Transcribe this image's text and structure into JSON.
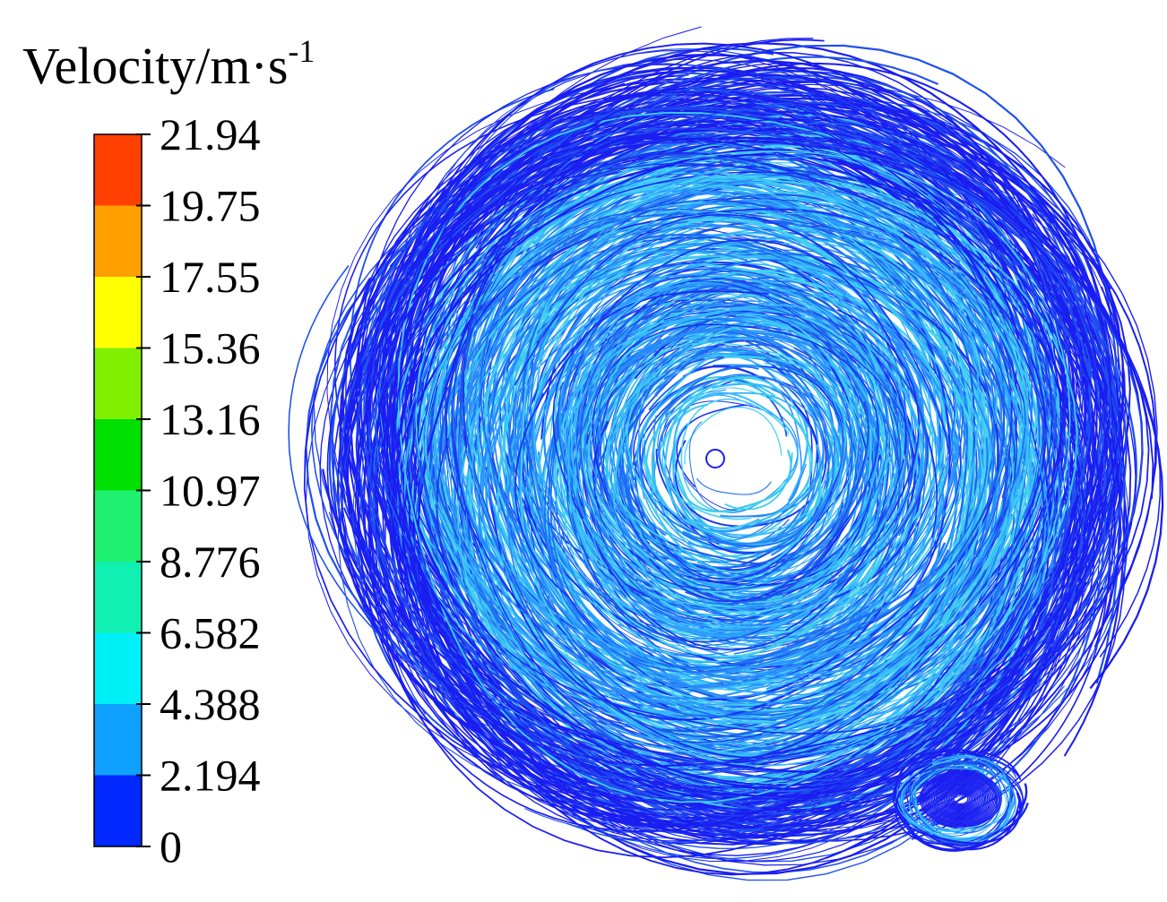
{
  "legend": {
    "title": {
      "text": "Velocity/m·s",
      "superscript": "-1"
    },
    "ticks": [
      21.94,
      19.75,
      17.55,
      15.36,
      13.16,
      10.97,
      8.776,
      6.582,
      4.388,
      2.194,
      0
    ],
    "colors": [
      "#ff4000",
      "#ffa000",
      "#ffff00",
      "#80f000",
      "#00e000",
      "#20f070",
      "#10f0b0",
      "#00f0f8",
      "#10a0ff",
      "#0028ff"
    ]
  }
}
